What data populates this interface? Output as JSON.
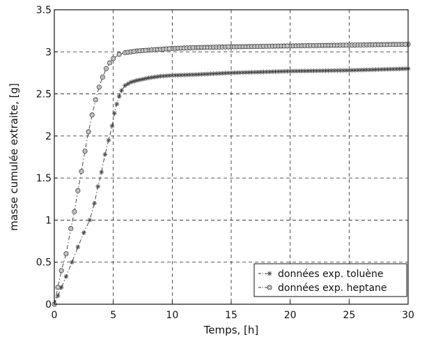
{
  "chart_data": {
    "type": "scatter",
    "xlabel": "Temps, [h]",
    "ylabel": "masse cumulée extraite, [g]",
    "xlim": [
      0,
      30
    ],
    "ylim": [
      0,
      3.5
    ],
    "x_ticks": [
      "0",
      "5",
      "10",
      "15",
      "20",
      "25",
      "30"
    ],
    "y_ticks": [
      "0",
      "0.5",
      "1",
      "1.5",
      "2",
      "2.5",
      "3",
      "3.5"
    ],
    "grid": true,
    "legend_position": "bottom-right",
    "series": [
      {
        "name": "données exp. toluène",
        "marker": "asterisk",
        "line": "dash-dot",
        "points": [
          [
            0,
            0
          ],
          [
            0.3,
            0.1
          ],
          [
            0.6,
            0.2
          ],
          [
            1,
            0.33
          ],
          [
            1.5,
            0.5
          ],
          [
            2,
            0.68
          ],
          [
            2.5,
            0.85
          ],
          [
            3,
            1.0
          ],
          [
            3.4,
            1.2
          ],
          [
            3.7,
            1.4
          ],
          [
            4,
            1.57
          ],
          [
            4.3,
            1.78
          ],
          [
            4.6,
            1.95
          ],
          [
            4.9,
            2.12
          ],
          [
            5.1,
            2.27
          ],
          [
            5.3,
            2.38
          ],
          [
            5.5,
            2.47
          ],
          [
            5.7,
            2.54
          ],
          [
            6,
            2.6
          ],
          [
            6.5,
            2.64
          ],
          [
            7,
            2.66
          ],
          [
            8,
            2.69
          ],
          [
            9,
            2.71
          ],
          [
            10,
            2.72
          ],
          [
            12,
            2.73
          ],
          [
            15,
            2.75
          ],
          [
            20,
            2.77
          ],
          [
            25,
            2.78
          ],
          [
            30,
            2.8
          ]
        ]
      },
      {
        "name": "données exp. heptane",
        "marker": "circle",
        "line": "dash-dot",
        "points": [
          [
            0,
            0
          ],
          [
            0.3,
            0.2
          ],
          [
            0.6,
            0.4
          ],
          [
            1,
            0.6
          ],
          [
            1.4,
            0.9
          ],
          [
            1.7,
            1.1
          ],
          [
            2,
            1.35
          ],
          [
            2.3,
            1.58
          ],
          [
            2.6,
            1.82
          ],
          [
            2.9,
            2.05
          ],
          [
            3.2,
            2.25
          ],
          [
            3.5,
            2.43
          ],
          [
            3.8,
            2.58
          ],
          [
            4.1,
            2.7
          ],
          [
            4.4,
            2.8
          ],
          [
            4.7,
            2.87
          ],
          [
            5,
            2.92
          ],
          [
            5.5,
            2.97
          ],
          [
            6,
            2.99
          ],
          [
            7,
            3.01
          ],
          [
            8,
            3.02
          ],
          [
            10,
            3.04
          ],
          [
            12,
            3.05
          ],
          [
            15,
            3.06
          ],
          [
            20,
            3.07
          ],
          [
            25,
            3.08
          ],
          [
            30,
            3.09
          ]
        ]
      }
    ]
  }
}
